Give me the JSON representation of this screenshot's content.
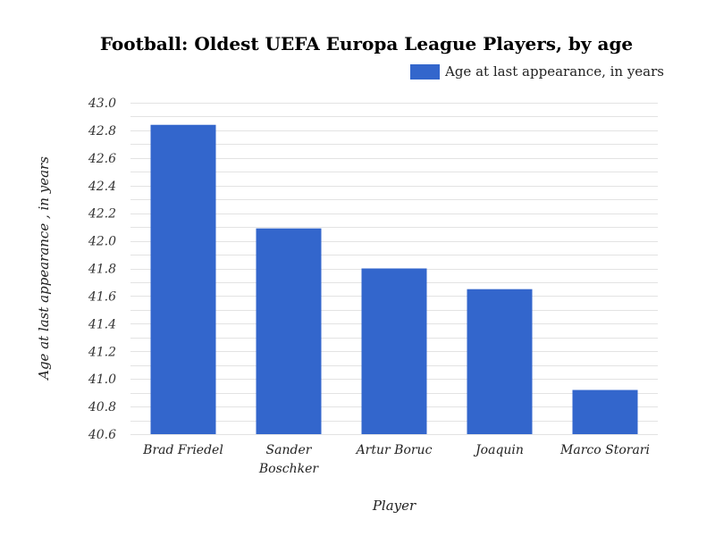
{
  "chart_data": {
    "type": "bar",
    "title": "Football: Oldest UEFA Europa League Players, by age",
    "xlabel": "Player",
    "ylabel": "Age at last appearance , in years",
    "categories": [
      "Brad Friedel",
      "Sander Boschker",
      "Artur Boruc",
      "Joaquin",
      "Marco Storari"
    ],
    "series": [
      {
        "name": "Age at last appearance, in years",
        "color": "#3366cc",
        "values": [
          42.84,
          42.09,
          41.8,
          41.65,
          40.92
        ]
      }
    ],
    "ylim": [
      40.6,
      43.0
    ],
    "yticks": [
      "40.6",
      "40.8",
      "41.0",
      "41.2",
      "41.4",
      "41.6",
      "41.8",
      "42.0",
      "42.2",
      "42.4",
      "42.6",
      "42.8",
      "43.0"
    ],
    "legend_position": "top-right",
    "grid": true
  }
}
